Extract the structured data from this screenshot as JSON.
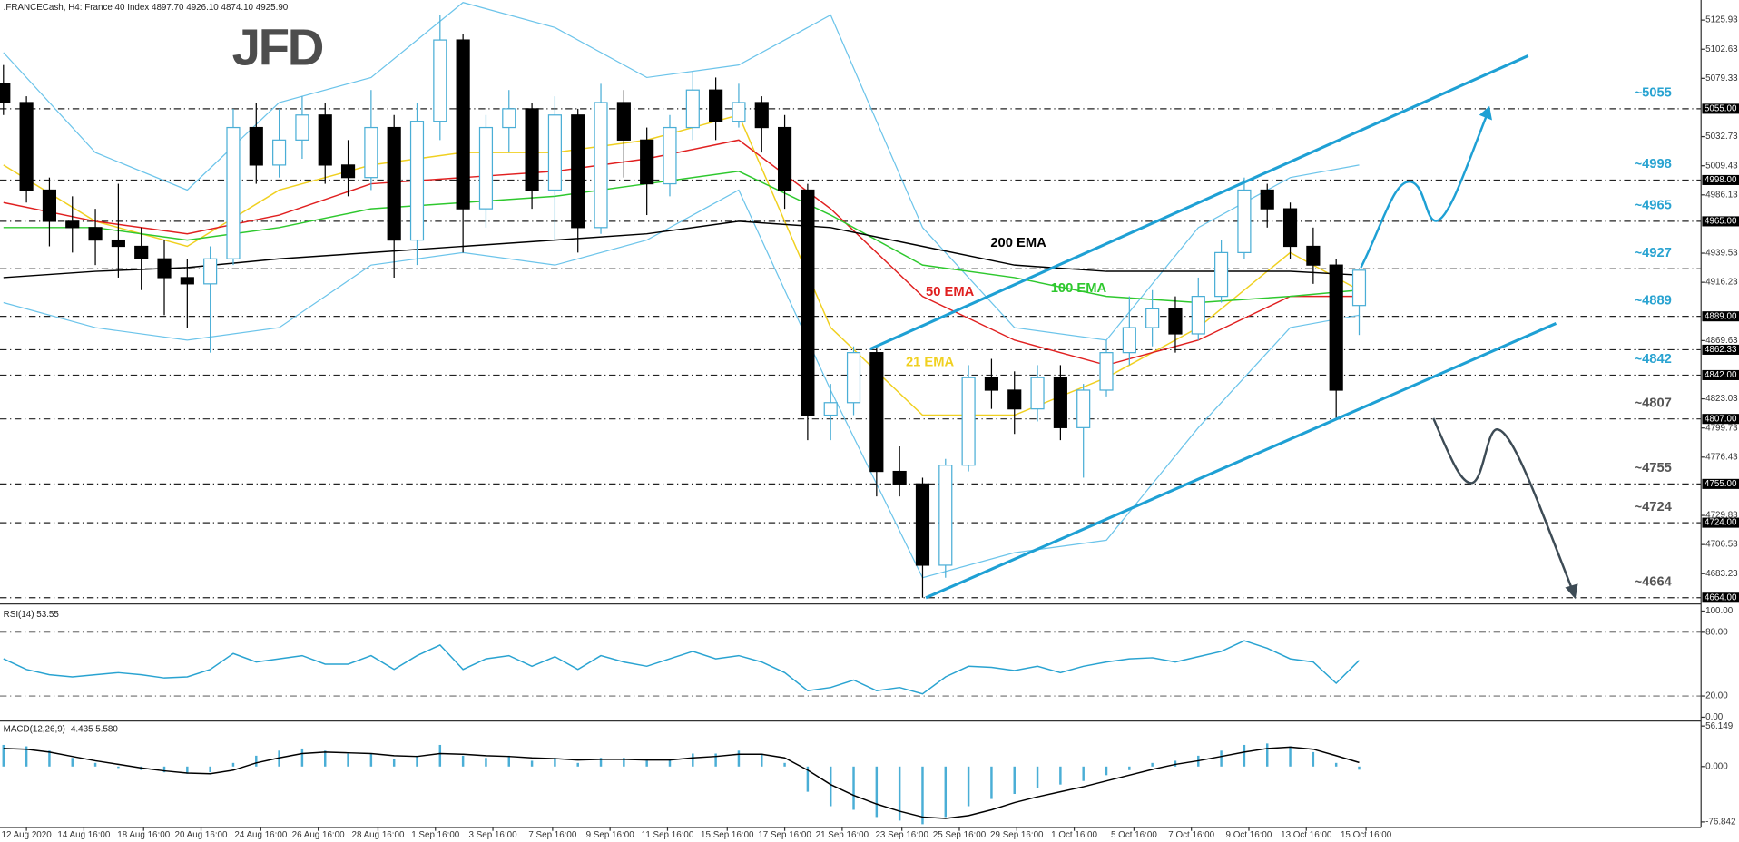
{
  "logo": "JFD",
  "chart_data": [
    {
      "type": "candlestick",
      "title": ".FRANCECash, H4:  France 40 Index  4897.70 4926.10 4874.10 4925.90",
      "xlim": [
        -0.15,
        73.88
      ],
      "ylim": [
        4660.4,
        5140.2
      ],
      "yticks": [
        5125.93,
        5102.63,
        5079.33,
        5032.73,
        5009.43,
        4986.13,
        4939.53,
        4916.23,
        4869.63,
        4823.03,
        4799.73,
        4776.43,
        4729.83,
        4706.53,
        4683.23
      ],
      "xticks": [
        {
          "value": 1.0,
          "label": "12 Aug 2020"
        },
        {
          "value": 3.5,
          "label": "14 Aug 16:00"
        },
        {
          "value": 6.1,
          "label": "18 Aug 16:00"
        },
        {
          "value": 8.6,
          "label": "20 Aug 16:00"
        },
        {
          "value": 11.2,
          "label": "24 Aug 16:00"
        },
        {
          "value": 13.7,
          "label": "26 Aug 16:00"
        },
        {
          "value": 16.3,
          "label": "28 Aug 16:00"
        },
        {
          "value": 18.8,
          "label": "1 Sep 16:00"
        },
        {
          "value": 21.3,
          "label": "3 Sep 16:00"
        },
        {
          "value": 23.9,
          "label": "7 Sep 16:00"
        },
        {
          "value": 26.4,
          "label": "9 Sep 16:00"
        },
        {
          "value": 28.9,
          "label": "11 Sep 16:00"
        },
        {
          "value": 31.5,
          "label": "15 Sep 16:00"
        },
        {
          "value": 34.0,
          "label": "17 Sep 16:00"
        },
        {
          "value": 36.5,
          "label": "21 Sep 16:00"
        },
        {
          "value": 39.1,
          "label": "23 Sep 16:00"
        },
        {
          "value": 41.6,
          "label": "25 Sep 16:00"
        },
        {
          "value": 44.1,
          "label": "29 Sep 16:00"
        },
        {
          "value": 46.6,
          "label": "1 Oct 16:00"
        },
        {
          "value": 49.2,
          "label": "5 Oct 16:00"
        },
        {
          "value": 51.7,
          "label": "7 Oct 16:00"
        },
        {
          "value": 54.2,
          "label": "9 Oct 16:00"
        },
        {
          "value": 56.7,
          "label": "13 Oct 16:00"
        },
        {
          "value": 59.3,
          "label": "15 Oct 16:00"
        }
      ],
      "up_color": "#ffffff",
      "up_edge": "#4aaed6",
      "down_color": "#000000",
      "ohlc": [
        [
          5075,
          5090,
          5050,
          5060
        ],
        [
          5060,
          5065,
          4980,
          4990
        ],
        [
          4990,
          5000,
          4945,
          4965
        ],
        [
          4965,
          4985,
          4940,
          4960
        ],
        [
          4960,
          4975,
          4930,
          4950
        ],
        [
          4950,
          4995,
          4920,
          4945
        ],
        [
          4945,
          4960,
          4910,
          4935
        ],
        [
          4935,
          4950,
          4890,
          4920
        ],
        [
          4920,
          4935,
          4880,
          4915
        ],
        [
          4915,
          4945,
          4860,
          4935
        ],
        [
          4935,
          5055,
          4930,
          5040
        ],
        [
          5040,
          5060,
          4995,
          5010
        ],
        [
          5010,
          5055,
          5000,
          5030
        ],
        [
          5030,
          5065,
          5015,
          5050
        ],
        [
          5050,
          5060,
          4995,
          5010
        ],
        [
          5010,
          5030,
          4985,
          5000
        ],
        [
          5000,
          5070,
          4990,
          5040
        ],
        [
          5040,
          5050,
          4920,
          4950
        ],
        [
          4950,
          5060,
          4930,
          5045
        ],
        [
          5045,
          5130,
          5030,
          5110
        ],
        [
          5110,
          5115,
          4940,
          4975
        ],
        [
          4975,
          5050,
          4960,
          5040
        ],
        [
          5040,
          5070,
          5020,
          5055
        ],
        [
          5055,
          5060,
          4975,
          4990
        ],
        [
          4990,
          5065,
          4950,
          5050
        ],
        [
          5050,
          5055,
          4940,
          4960
        ],
        [
          4960,
          5075,
          4955,
          5060
        ],
        [
          5060,
          5070,
          5000,
          5030
        ],
        [
          5030,
          5040,
          4970,
          4995
        ],
        [
          4995,
          5050,
          4985,
          5040
        ],
        [
          5040,
          5085,
          5030,
          5070
        ],
        [
          5070,
          5080,
          5030,
          5045
        ],
        [
          5045,
          5075,
          5040,
          5060
        ],
        [
          5060,
          5065,
          5020,
          5040
        ],
        [
          5040,
          5050,
          4975,
          4990
        ],
        [
          4990,
          4995,
          4790,
          4810
        ],
        [
          4810,
          4835,
          4790,
          4820
        ],
        [
          4820,
          4865,
          4810,
          4860
        ],
        [
          4860,
          4865,
          4745,
          4765
        ],
        [
          4765,
          4785,
          4745,
          4755
        ],
        [
          4755,
          4760,
          4664,
          4690
        ],
        [
          4690,
          4775,
          4680,
          4770
        ],
        [
          4770,
          4850,
          4765,
          4840
        ],
        [
          4840,
          4855,
          4815,
          4830
        ],
        [
          4830,
          4845,
          4795,
          4815
        ],
        [
          4815,
          4850,
          4805,
          4840
        ],
        [
          4840,
          4850,
          4790,
          4800
        ],
        [
          4800,
          4835,
          4760,
          4830
        ],
        [
          4830,
          4870,
          4825,
          4860
        ],
        [
          4860,
          4905,
          4850,
          4880
        ],
        [
          4880,
          4910,
          4865,
          4895
        ],
        [
          4895,
          4905,
          4860,
          4875
        ],
        [
          4875,
          4920,
          4870,
          4905
        ],
        [
          4905,
          4950,
          4900,
          4940
        ],
        [
          4940,
          5000,
          4935,
          4990
        ],
        [
          4990,
          4995,
          4960,
          4975
        ],
        [
          4975,
          4980,
          4935,
          4945
        ],
        [
          4945,
          4960,
          4915,
          4930
        ],
        [
          4930,
          4935,
          4807,
          4830
        ],
        [
          4897.7,
          4926.1,
          4874.1,
          4925.9
        ]
      ],
      "bands": {
        "color": "#6cc4ea",
        "x": [
          0,
          4,
          8,
          12,
          16,
          20,
          24,
          28,
          32,
          36,
          40,
          44,
          48,
          52,
          56,
          59
        ],
        "upper": [
          5100,
          5020,
          4990,
          5060,
          5080,
          5140,
          5120,
          5080,
          5090,
          5130,
          4960,
          4880,
          4870,
          4960,
          5000,
          5010
        ],
        "lower": [
          4900,
          4880,
          4870,
          4880,
          4930,
          4940,
          4930,
          4950,
          4990,
          4830,
          4680,
          4700,
          4710,
          4800,
          4880,
          4890
        ]
      },
      "series": [
        {
          "name": "21 EMA",
          "color": "#f0d020",
          "x": [
            0,
            4,
            8,
            12,
            16,
            20,
            24,
            28,
            32,
            36,
            40,
            44,
            48,
            52,
            56,
            59
          ],
          "values": [
            5010,
            4965,
            4945,
            4990,
            5010,
            5020,
            5020,
            5030,
            5050,
            4880,
            4810,
            4810,
            4840,
            4880,
            4940,
            4910
          ]
        },
        {
          "name": "50 EMA",
          "color": "#e02020",
          "x": [
            0,
            4,
            8,
            12,
            16,
            20,
            24,
            28,
            32,
            36,
            40,
            44,
            48,
            52,
            56,
            59
          ],
          "values": [
            4980,
            4965,
            4955,
            4970,
            4995,
            5000,
            5005,
            5015,
            5030,
            4975,
            4905,
            4870,
            4850,
            4870,
            4905,
            4905
          ]
        },
        {
          "name": "100 EMA",
          "color": "#2ec82e",
          "x": [
            0,
            4,
            8,
            12,
            16,
            20,
            24,
            28,
            32,
            36,
            40,
            44,
            48,
            52,
            56,
            59
          ],
          "values": [
            4960,
            4960,
            4950,
            4960,
            4975,
            4980,
            4985,
            4995,
            5005,
            4970,
            4930,
            4920,
            4905,
            4900,
            4905,
            4910
          ]
        },
        {
          "name": "200 EMA",
          "color": "#000000",
          "x": [
            0,
            4,
            8,
            12,
            16,
            20,
            24,
            28,
            32,
            36,
            40,
            44,
            48,
            52,
            56,
            59
          ],
          "values": [
            4920,
            4925,
            4928,
            4935,
            4940,
            4945,
            4950,
            4955,
            4965,
            4960,
            4945,
            4930,
            4925,
            4925,
            4925,
            4922
          ]
        }
      ],
      "levels": [
        {
          "value": 5055,
          "label": "~5055",
          "tag": "5055.00",
          "color": "#29a3d1"
        },
        {
          "value": 4998,
          "label": "~4998",
          "tag": "4998.00",
          "color": "#29a3d1"
        },
        {
          "value": 4965,
          "label": "~4965",
          "tag": "4965.00",
          "color": "#29a3d1"
        },
        {
          "value": 4927,
          "label": "~4927",
          "color": "#29a3d1"
        },
        {
          "value": 4889,
          "label": "~4889",
          "tag": "4889.00",
          "color": "#29a3d1"
        },
        {
          "value": 4862.33,
          "tag": "4862.33"
        },
        {
          "value": 4842,
          "label": "~4842",
          "tag": "4842.00",
          "color": "#29a3d1"
        },
        {
          "value": 4807,
          "label": "~4807",
          "tag": "4807.00",
          "color": "#555555"
        },
        {
          "value": 4755,
          "label": "~4755",
          "tag": "4755.00",
          "color": "#555555"
        },
        {
          "value": 4724,
          "label": "~4724",
          "tag": "4724.00",
          "color": "#555555"
        },
        {
          "value": 4664,
          "label": "~4664",
          "tag": "4664.00",
          "color": "#555555"
        }
      ]
    },
    {
      "type": "line",
      "title": "RSI(14) 53.55",
      "color": "#29a3d1",
      "xlim": [
        -0.15,
        73.88
      ],
      "ylim": [
        -2,
        102
      ],
      "yticks": [
        {
          "value": 100,
          "label": "100.00"
        },
        {
          "value": 80,
          "label": "80.00"
        },
        {
          "value": 20,
          "label": "20.00"
        },
        {
          "value": 0,
          "label": "0.00"
        }
      ],
      "values": [
        55,
        45,
        40,
        38,
        40,
        42,
        40,
        37,
        38,
        45,
        60,
        52,
        55,
        58,
        50,
        50,
        58,
        45,
        58,
        68,
        45,
        55,
        58,
        48,
        57,
        45,
        58,
        52,
        48,
        55,
        62,
        55,
        58,
        52,
        42,
        25,
        28,
        35,
        25,
        28,
        22,
        38,
        48,
        47,
        44,
        48,
        42,
        48,
        52,
        55,
        56,
        52,
        57,
        62,
        72,
        65,
        55,
        52,
        32,
        53.55
      ]
    },
    {
      "type": "macd",
      "title": "MACD(12,26,9) -4.435 5.580",
      "color": "#4aaed6",
      "signal_color": "#000000",
      "xlim": [
        -0.15,
        73.88
      ],
      "ylim": [
        -84.57,
        60.79
      ],
      "yticks": [
        56.149,
        {
          "value": 0,
          "label": "0.000"
        },
        -76.842
      ],
      "histogram": [
        30,
        28,
        22,
        12,
        5,
        -2,
        -5,
        -8,
        -10,
        -8,
        5,
        15,
        22,
        25,
        22,
        18,
        18,
        10,
        15,
        30,
        15,
        12,
        15,
        8,
        12,
        5,
        12,
        12,
        8,
        10,
        18,
        18,
        22,
        18,
        5,
        -35,
        -55,
        -60,
        -70,
        -75,
        -80,
        -70,
        -55,
        -45,
        -38,
        -30,
        -25,
        -20,
        -12,
        -5,
        5,
        8,
        15,
        22,
        30,
        32,
        28,
        20,
        5,
        -4.435
      ],
      "signal": [
        25,
        24,
        20,
        14,
        8,
        3,
        -2,
        -6,
        -9,
        -10,
        -5,
        5,
        12,
        18,
        20,
        19,
        18,
        15,
        14,
        18,
        17,
        15,
        14,
        12,
        11,
        9,
        10,
        10,
        9,
        9,
        12,
        14,
        17,
        17,
        12,
        -5,
        -25,
        -40,
        -52,
        -62,
        -70,
        -72,
        -68,
        -60,
        -50,
        -42,
        -35,
        -28,
        -20,
        -12,
        -4,
        3,
        8,
        14,
        20,
        25,
        27,
        24,
        15,
        5.58
      ]
    }
  ]
}
